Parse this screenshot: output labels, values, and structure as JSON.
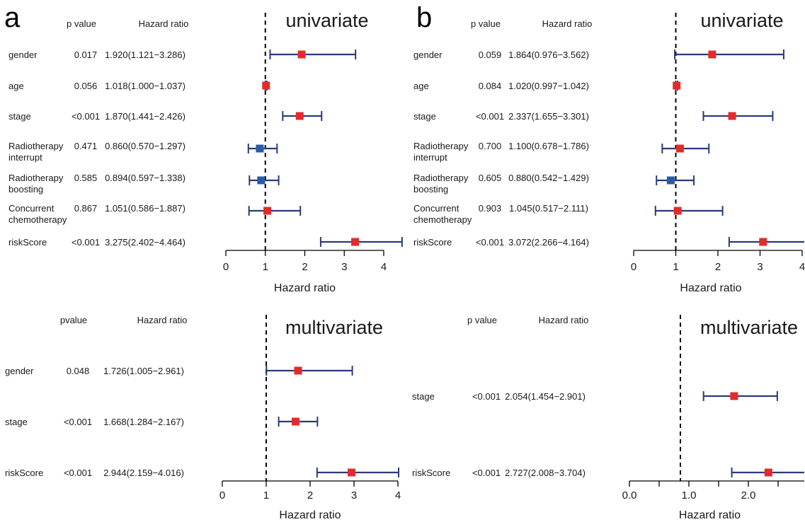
{
  "panel_labels": {
    "a": "a",
    "b": "b"
  },
  "colors": {
    "hr_above_1": "#e32b2b",
    "hr_below_1": "#2c5aa8",
    "ci_line": "#2b3a7a",
    "text": "#1a1a1a"
  },
  "chart_data": [
    {
      "type": "forest",
      "panel": "a",
      "title": "univariate",
      "xlabel": "Hazard ratio",
      "headers": {
        "p": "p value",
        "hr": "Hazard ratio"
      },
      "xlim": [
        0,
        4
      ],
      "ticks": [
        "0",
        "1",
        "2",
        "3",
        "4"
      ],
      "reference_line": 1,
      "rows": [
        {
          "label": [
            "gender"
          ],
          "p": "0.017",
          "hr_text": "1.920(1.121−3.286)",
          "hr": 1.92,
          "lo": 1.121,
          "hi": 3.286
        },
        {
          "label": [
            "age"
          ],
          "p": "0.056",
          "hr_text": "1.018(1.000−1.037)",
          "hr": 1.018,
          "lo": 1.0,
          "hi": 1.037
        },
        {
          "label": [
            "stage"
          ],
          "p": "<0.001",
          "hr_text": "1.870(1.441−2.426)",
          "hr": 1.87,
          "lo": 1.441,
          "hi": 2.426
        },
        {
          "label": [
            "Radiotherapy",
            "interrupt"
          ],
          "p": "0.471",
          "hr_text": "0.860(0.570−1.297)",
          "hr": 0.86,
          "lo": 0.57,
          "hi": 1.297
        },
        {
          "label": [
            "Radiotherapy",
            "boosting"
          ],
          "p": "0.585",
          "hr_text": "0.894(0.597−1.338)",
          "hr": 0.894,
          "lo": 0.597,
          "hi": 1.338
        },
        {
          "label": [
            "Concurrent",
            "chemotherapy"
          ],
          "p": "0.867",
          "hr_text": "1.051(0.586−1.887)",
          "hr": 1.051,
          "lo": 0.586,
          "hi": 1.887
        },
        {
          "label": [
            "riskScore"
          ],
          "p": "<0.001",
          "hr_text": "3.275(2.402−4.464)",
          "hr": 3.275,
          "lo": 2.402,
          "hi": 4.464
        }
      ]
    },
    {
      "type": "forest",
      "panel": "b",
      "title": "univariate",
      "xlabel": "Hazard ratio",
      "headers": {
        "p": "p value",
        "hr": "Hazard ratio"
      },
      "xlim": [
        0,
        4
      ],
      "ticks": [
        "0",
        "1",
        "2",
        "3",
        "4"
      ],
      "reference_line": 1,
      "rows": [
        {
          "label": [
            "gender"
          ],
          "p": "0.059",
          "hr_text": "1.864(0.976−3.562)",
          "hr": 1.864,
          "lo": 0.976,
          "hi": 3.562
        },
        {
          "label": [
            "age"
          ],
          "p": "0.084",
          "hr_text": "1.020(0.997−1.042)",
          "hr": 1.02,
          "lo": 0.997,
          "hi": 1.042
        },
        {
          "label": [
            "stage"
          ],
          "p": "<0.001",
          "hr_text": "2.337(1.655−3.301)",
          "hr": 2.337,
          "lo": 1.655,
          "hi": 3.301
        },
        {
          "label": [
            "Radiotherapy",
            "interrupt"
          ],
          "p": "0.700",
          "hr_text": "1.100(0.678−1.786)",
          "hr": 1.1,
          "lo": 0.678,
          "hi": 1.786
        },
        {
          "label": [
            "Radiotherapy",
            "boosting"
          ],
          "p": "0.605",
          "hr_text": "0.880(0.542−1.429)",
          "hr": 0.88,
          "lo": 0.542,
          "hi": 1.429
        },
        {
          "label": [
            "Concurrent",
            "chemotherapy"
          ],
          "p": "0.903",
          "hr_text": "1.045(0.517−2.111)",
          "hr": 1.045,
          "lo": 0.517,
          "hi": 2.111
        },
        {
          "label": [
            "riskScore"
          ],
          "p": "<0.001",
          "hr_text": "3.072(2.266−4.164)",
          "hr": 3.072,
          "lo": 2.266,
          "hi": 4.164
        }
      ]
    },
    {
      "type": "forest",
      "panel": "a",
      "title": "multivariate",
      "xlabel": "Hazard ratio",
      "headers": {
        "p": "pvalue",
        "hr": "Hazard ratio"
      },
      "xlim": [
        0,
        4
      ],
      "ticks": [
        "0",
        "1",
        "2",
        "3",
        "4"
      ],
      "reference_line": 1,
      "rows": [
        {
          "label": [
            "gender"
          ],
          "p": "0.048",
          "hr_text": "1.726(1.005−2.961)",
          "hr": 1.726,
          "lo": 1.005,
          "hi": 2.961
        },
        {
          "label": [
            "stage"
          ],
          "p": "<0.001",
          "hr_text": "1.668(1.284−2.167)",
          "hr": 1.668,
          "lo": 1.284,
          "hi": 2.167
        },
        {
          "label": [
            "riskScore"
          ],
          "p": "<0.001",
          "hr_text": "2.944(2.159−4.016)",
          "hr": 2.944,
          "lo": 2.159,
          "hi": 4.016
        }
      ]
    },
    {
      "type": "forest",
      "panel": "b",
      "title": "multivariate",
      "xlabel": "Hazard ratio",
      "headers": {
        "p": "p value",
        "hr": "Hazard ratio"
      },
      "xlim": [
        0,
        3.5
      ],
      "ticks": [
        "0.0",
        "",
        "1.0",
        "",
        "2.0",
        "",
        "3.0"
      ],
      "reference_line": 1,
      "rows": [
        {
          "label": [
            "stage"
          ],
          "p": "<0.001",
          "hr_text": "2.054(1.454−2.901)",
          "hr": 2.054,
          "lo": 1.454,
          "hi": 2.901
        },
        {
          "label": [
            "riskScore"
          ],
          "p": "<0.001",
          "hr_text": "2.727(2.008−3.704)",
          "hr": 2.727,
          "lo": 2.008,
          "hi": 3.704
        }
      ]
    }
  ]
}
